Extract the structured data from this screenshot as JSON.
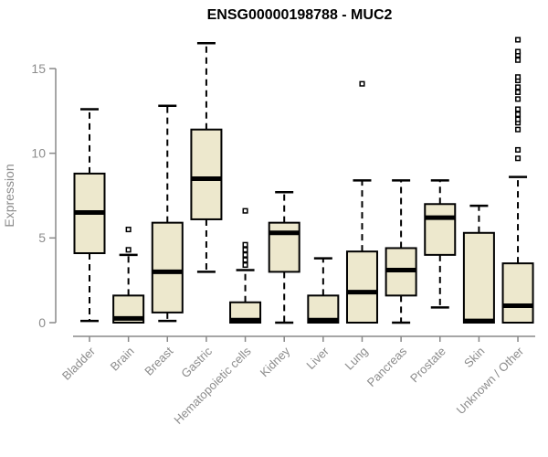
{
  "page": {
    "background": "#ffffff"
  },
  "chart_data": {
    "type": "boxplot",
    "title": "ENSG00000198788 - MUC2",
    "ylabel": "Expression",
    "xlabel": "",
    "ylim": [
      0,
      15
    ],
    "yticks": [
      0,
      5,
      10,
      15
    ],
    "grid": false,
    "legend": false,
    "colors": {
      "box_fill": "#EDE8CD",
      "box_border": "#000000",
      "median": "#000000",
      "whisker": "#000000",
      "outlier_fill": "#FFFFFF",
      "axis_line": "#888888",
      "axis_text": "#8C8C8C",
      "title_text": "#000000",
      "background": "#FFFFFF"
    },
    "categories": [
      "Bladder",
      "Brain",
      "Breast",
      "Gastric",
      "Hematopoietic cells",
      "Kidney",
      "Liver",
      "Lung",
      "Pancreas",
      "Prostate",
      "Skin",
      "Unknown / Other"
    ],
    "boxes": [
      {
        "category": "Bladder",
        "whisker_low": 0.1,
        "q1": 4.1,
        "median": 6.5,
        "q3": 8.8,
        "whisker_high": 12.6,
        "outliers": []
      },
      {
        "category": "Brain",
        "whisker_low": 0,
        "q1": 0,
        "median": 0.25,
        "q3": 1.6,
        "whisker_high": 4.0,
        "outliers": [
          4.3,
          5.5
        ]
      },
      {
        "category": "Breast",
        "whisker_low": 0.1,
        "q1": 0.6,
        "median": 3.0,
        "q3": 5.9,
        "whisker_high": 12.8,
        "outliers": []
      },
      {
        "category": "Gastric",
        "whisker_low": 3.0,
        "q1": 6.1,
        "median": 8.5,
        "q3": 11.4,
        "whisker_high": 16.5,
        "outliers": []
      },
      {
        "category": "Hematopoietic cells",
        "whisker_low": 0,
        "q1": 0,
        "median": 0.15,
        "q3": 1.2,
        "whisker_high": 3.1,
        "outliers": [
          3.4,
          3.7,
          4.0,
          4.3,
          4.6,
          6.6
        ]
      },
      {
        "category": "Kidney",
        "whisker_low": 0,
        "q1": 3.0,
        "median": 5.3,
        "q3": 5.9,
        "whisker_high": 7.7,
        "outliers": []
      },
      {
        "category": "Liver",
        "whisker_low": 0,
        "q1": 0,
        "median": 0.15,
        "q3": 1.6,
        "whisker_high": 3.8,
        "outliers": []
      },
      {
        "category": "Lung",
        "whisker_low": 0,
        "q1": 0,
        "median": 1.8,
        "q3": 4.2,
        "whisker_high": 8.4,
        "outliers": [
          14.1
        ]
      },
      {
        "category": "Pancreas",
        "whisker_low": 0,
        "q1": 1.6,
        "median": 3.1,
        "q3": 4.4,
        "whisker_high": 8.4,
        "outliers": []
      },
      {
        "category": "Prostate",
        "whisker_low": 0.9,
        "q1": 4.0,
        "median": 6.2,
        "q3": 7.0,
        "whisker_high": 8.4,
        "outliers": []
      },
      {
        "category": "Skin",
        "whisker_low": 0,
        "q1": 0,
        "median": 0.1,
        "q3": 5.3,
        "whisker_high": 6.9,
        "outliers": []
      },
      {
        "category": "Unknown / Other",
        "whisker_low": 0,
        "q1": 0,
        "median": 1.0,
        "q3": 3.5,
        "whisker_high": 8.6,
        "outliers": [
          9.7,
          10.2,
          11.4,
          11.8,
          12.0,
          12.3,
          12.6,
          13.2,
          13.6,
          13.9,
          14.3,
          14.5,
          15.5,
          15.8,
          16.0,
          16.7
        ]
      }
    ]
  }
}
